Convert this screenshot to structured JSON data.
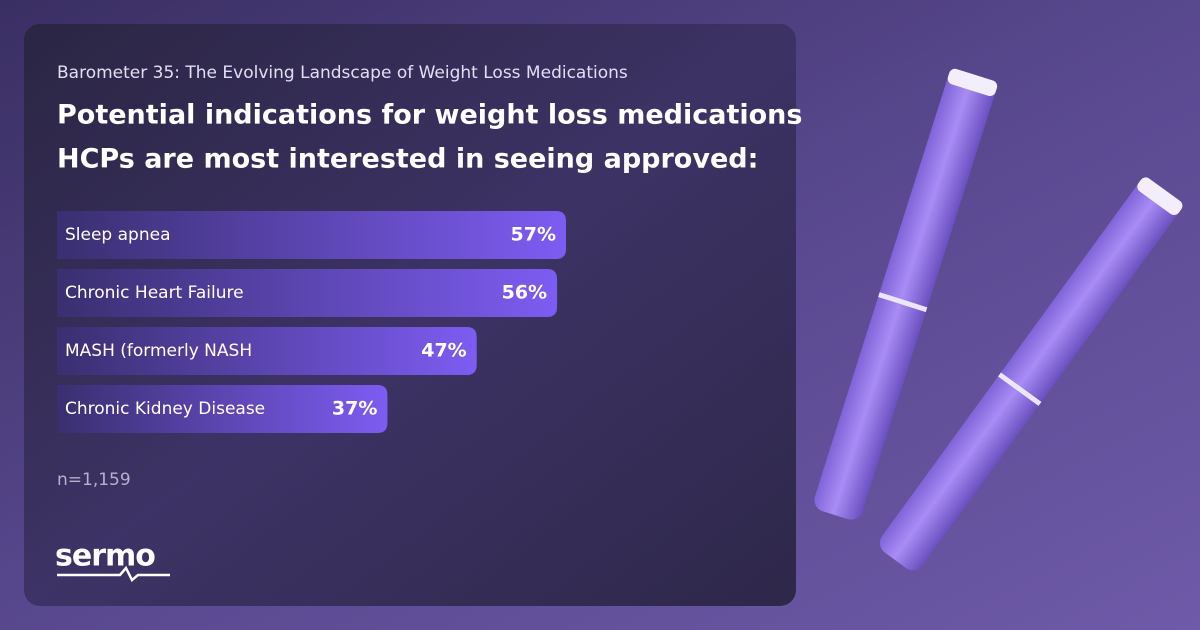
{
  "chart_data": {
    "type": "bar",
    "orientation": "horizontal",
    "subtitle": "Barometer 35: The Evolving Landscape of Weight Loss Medications",
    "title": [
      "Potential indications for weight loss medications",
      "HCPs are most interested in seeing approved:"
    ],
    "categories": [
      "Sleep apnea",
      "Chronic Heart Failure",
      "MASH (formerly NASH",
      "Chronic Kidney Disease"
    ],
    "values": [
      57,
      56,
      47,
      37
    ],
    "value_labels": [
      "57%",
      "56%",
      "47%",
      "37%"
    ],
    "color": "#7d5cf2",
    "note": "n=1,159"
  },
  "brand": "sermo"
}
